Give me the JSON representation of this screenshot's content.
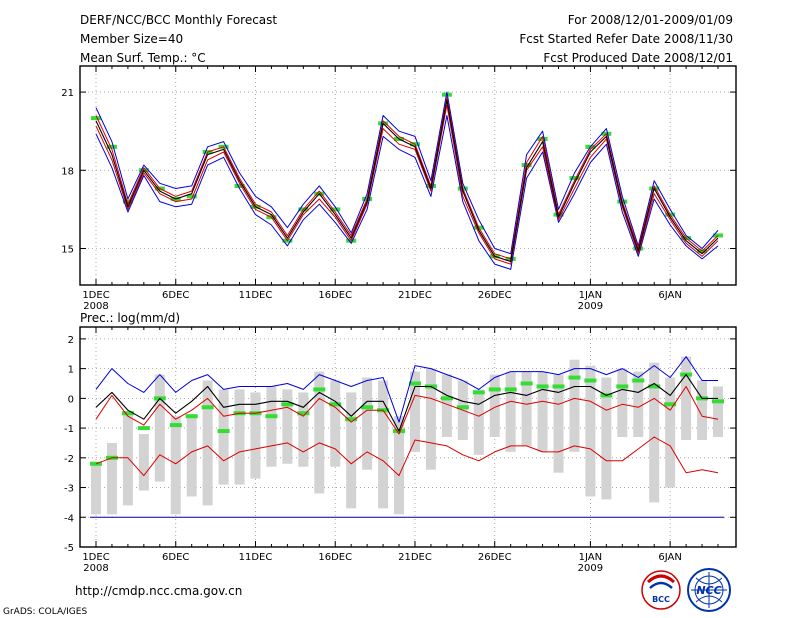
{
  "header": {
    "title": "DERF/NCC/BCC Monthly Forecast",
    "member_size": "Member Size=40",
    "variable": "Mean Surf. Temp.: °C",
    "period": "For 2008/12/01-2009/01/09",
    "started": "Fcst Started Refer Date 2008/11/30",
    "produced": "Fcst Produced Date 2008/12/01"
  },
  "footer": {
    "url": "http://cmdp.ncc.cma.gov.cn",
    "grads": "GrADS: COLA/IGES",
    "logo_bcc": "BCC",
    "logo_ncc": "NCC"
  },
  "x_ticks": [
    {
      "day": 1,
      "label": "1DEC",
      "sub": "2008"
    },
    {
      "day": 6,
      "label": "6DEC",
      "sub": ""
    },
    {
      "day": 11,
      "label": "11DEC",
      "sub": ""
    },
    {
      "day": 16,
      "label": "16DEC",
      "sub": ""
    },
    {
      "day": 21,
      "label": "21DEC",
      "sub": ""
    },
    {
      "day": 26,
      "label": "26DEC",
      "sub": ""
    },
    {
      "day": 32,
      "label": "1JAN",
      "sub": "2009"
    },
    {
      "day": 37,
      "label": "6JAN",
      "sub": ""
    }
  ],
  "colors": {
    "ensemble_max_min": "#0000dd",
    "ensemble_mean": "#000000",
    "spread": "#dd0000",
    "obs_marker": "#33dd33",
    "boxes": "#d3d3d3"
  },
  "chart_data": [
    {
      "type": "line",
      "title": "Mean Surf. Temp.: °C",
      "xlabel": "",
      "ylabel": "",
      "x": [
        1,
        2,
        3,
        4,
        5,
        6,
        7,
        8,
        9,
        10,
        11,
        12,
        13,
        14,
        15,
        16,
        17,
        18,
        19,
        20,
        21,
        22,
        23,
        24,
        25,
        26,
        27,
        28,
        29,
        30,
        31,
        32,
        33,
        34,
        35,
        36,
        37,
        38,
        39,
        40
      ],
      "ylim": [
        13.6,
        22.0
      ],
      "yticks": [
        15,
        18,
        21
      ],
      "series": [
        {
          "name": "ensemble max",
          "values": [
            20.4,
            19.1,
            16.9,
            18.2,
            17.5,
            17.3,
            17.4,
            18.9,
            19.1,
            17.9,
            17.0,
            16.6,
            15.8,
            16.7,
            17.4,
            16.6,
            15.6,
            17.1,
            20.1,
            19.5,
            19.3,
            17.6,
            21.0,
            17.5,
            16.1,
            15.0,
            14.8,
            18.6,
            19.5,
            16.5,
            17.9,
            18.9,
            19.6,
            17.0,
            15.1,
            17.6,
            16.5,
            15.5,
            15.0,
            15.7
          ]
        },
        {
          "name": "spread upper",
          "values": [
            20.1,
            18.8,
            16.7,
            18.1,
            17.3,
            17.0,
            17.2,
            18.7,
            18.9,
            17.7,
            16.7,
            16.4,
            15.5,
            16.5,
            17.2,
            16.4,
            15.5,
            16.9,
            19.9,
            19.3,
            19.0,
            17.4,
            20.8,
            17.3,
            15.8,
            14.8,
            14.6,
            18.3,
            19.3,
            16.3,
            17.6,
            18.8,
            19.4,
            16.8,
            15.0,
            17.4,
            16.3,
            15.4,
            14.9,
            15.5
          ]
        },
        {
          "name": "ensemble mean",
          "values": [
            19.9,
            18.6,
            16.6,
            18.0,
            17.2,
            16.9,
            17.1,
            18.6,
            18.8,
            17.6,
            16.6,
            16.3,
            15.4,
            16.4,
            17.1,
            16.3,
            15.4,
            16.8,
            19.8,
            19.2,
            18.9,
            17.3,
            20.7,
            17.2,
            15.7,
            14.7,
            14.5,
            18.1,
            19.1,
            16.2,
            17.5,
            18.7,
            19.3,
            16.7,
            14.9,
            17.3,
            16.2,
            15.3,
            14.8,
            15.4
          ]
        },
        {
          "name": "spread lower",
          "values": [
            19.7,
            18.4,
            16.5,
            17.9,
            17.1,
            16.8,
            16.9,
            18.4,
            18.7,
            17.5,
            16.5,
            16.2,
            15.3,
            16.3,
            16.9,
            16.2,
            15.3,
            16.7,
            19.6,
            19.0,
            18.8,
            17.2,
            20.5,
            17.0,
            15.6,
            14.6,
            14.4,
            18.0,
            18.9,
            16.1,
            17.3,
            18.5,
            19.2,
            16.6,
            14.8,
            17.1,
            16.1,
            15.2,
            14.7,
            15.3
          ]
        },
        {
          "name": "ensemble min",
          "values": [
            19.4,
            18.1,
            16.4,
            17.8,
            16.8,
            16.6,
            16.7,
            18.2,
            18.5,
            17.3,
            16.3,
            15.9,
            15.1,
            16.1,
            16.7,
            16.0,
            15.2,
            16.5,
            19.3,
            18.8,
            18.5,
            17.0,
            20.1,
            16.8,
            15.3,
            14.4,
            14.2,
            17.7,
            18.7,
            16.0,
            17.1,
            18.3,
            19.0,
            16.4,
            14.7,
            16.9,
            15.9,
            15.1,
            14.6,
            15.1
          ]
        },
        {
          "name": "observed",
          "values": [
            20.0,
            18.9,
            16.8,
            18.0,
            17.3,
            16.9,
            17.0,
            18.7,
            18.9,
            17.4,
            16.6,
            16.2,
            15.3,
            16.5,
            17.1,
            16.5,
            15.3,
            16.9,
            19.8,
            19.2,
            19.0,
            17.4,
            20.9,
            17.3,
            15.8,
            14.7,
            14.6,
            18.2,
            19.2,
            16.3,
            17.7,
            18.9,
            19.4,
            16.8,
            15.0,
            17.3,
            16.3,
            15.4,
            14.9,
            15.5
          ]
        }
      ]
    },
    {
      "type": "line",
      "title": "Prec.: log(mm/d)",
      "xlabel": "",
      "ylabel": "",
      "x": [
        1,
        2,
        3,
        4,
        5,
        6,
        7,
        8,
        9,
        10,
        11,
        12,
        13,
        14,
        15,
        16,
        17,
        18,
        19,
        20,
        21,
        22,
        23,
        24,
        25,
        26,
        27,
        28,
        29,
        30,
        31,
        32,
        33,
        34,
        35,
        36,
        37,
        38,
        39,
        40
      ],
      "ylim": [
        -5,
        2.4
      ],
      "yticks": [
        -5,
        -4,
        -3,
        -2,
        -1,
        0,
        1,
        2
      ],
      "series": [
        {
          "name": "ensemble max",
          "values": [
            0.3,
            1.0,
            0.5,
            0.2,
            0.8,
            0.2,
            0.6,
            0.8,
            0.3,
            0.4,
            0.4,
            0.4,
            0.5,
            0.3,
            0.8,
            0.6,
            0.4,
            0.6,
            0.7,
            -0.8,
            1.1,
            1.0,
            0.8,
            0.6,
            0.3,
            0.7,
            0.9,
            0.9,
            0.9,
            0.8,
            1.0,
            1.0,
            0.8,
            1.0,
            0.7,
            1.1,
            0.7,
            1.4,
            0.6,
            0.6
          ]
        },
        {
          "name": "ensemble mean",
          "values": [
            -0.3,
            0.2,
            -0.4,
            -0.7,
            0.0,
            -0.5,
            -0.1,
            0.4,
            -0.3,
            -0.2,
            -0.2,
            -0.1,
            -0.1,
            -0.3,
            0.2,
            -0.1,
            -0.6,
            -0.1,
            -0.1,
            -1.1,
            0.4,
            0.4,
            0.1,
            -0.1,
            -0.2,
            0.1,
            0.2,
            0.1,
            0.3,
            0.2,
            0.4,
            0.4,
            0.1,
            0.3,
            0.2,
            0.5,
            0.1,
            0.8,
            0.0,
            0.0
          ]
        },
        {
          "name": "spread upper",
          "values": [
            -0.7,
            0.1,
            -0.6,
            -0.9,
            -0.2,
            -0.7,
            -0.4,
            0.0,
            -0.6,
            -0.5,
            -0.5,
            -0.4,
            -0.3,
            -0.6,
            0.0,
            -0.3,
            -0.8,
            -0.4,
            -0.4,
            -1.2,
            0.1,
            0.0,
            -0.2,
            -0.4,
            -0.6,
            -0.3,
            -0.1,
            -0.2,
            -0.1,
            -0.2,
            0.0,
            -0.1,
            -0.4,
            -0.2,
            -0.3,
            0.0,
            -0.4,
            0.4,
            -0.6,
            -0.7
          ]
        },
        {
          "name": "spread lower",
          "values": [
            -2.2,
            -2.0,
            -2.0,
            -2.6,
            -1.9,
            -2.2,
            -1.8,
            -1.6,
            -2.1,
            -1.8,
            -1.7,
            -1.6,
            -1.5,
            -1.8,
            -1.5,
            -1.7,
            -2.2,
            -1.8,
            -2.1,
            -2.6,
            -1.4,
            -1.5,
            -1.6,
            -1.9,
            -2.1,
            -1.8,
            -1.6,
            -1.6,
            -1.8,
            -1.8,
            -1.6,
            -1.7,
            -2.1,
            -2.1,
            -1.7,
            -1.3,
            -1.6,
            -2.5,
            -2.4,
            -2.5
          ]
        },
        {
          "name": "observed",
          "values": [
            -2.2,
            -2.0,
            -0.5,
            -1.0,
            0.0,
            -0.9,
            -0.6,
            -0.3,
            -1.1,
            -0.5,
            -0.5,
            -0.6,
            -0.2,
            -0.5,
            0.3,
            -0.2,
            -0.7,
            -0.3,
            -0.4,
            -1.1,
            0.5,
            0.4,
            0.0,
            -0.3,
            0.2,
            0.3,
            0.3,
            0.5,
            0.4,
            0.4,
            0.7,
            0.6,
            0.1,
            0.4,
            0.6,
            0.4,
            -0.2,
            0.8,
            0.0,
            -0.1
          ]
        }
      ],
      "box_top": [
        -2.2,
        -1.5,
        -0.5,
        -1.2,
        0.8,
        -0.6,
        -0.6,
        0.6,
        0.3,
        0.3,
        0.2,
        0.4,
        0.3,
        0.2,
        0.9,
        0.6,
        0.2,
        0.7,
        0.6,
        -0.6,
        0.9,
        1.0,
        0.8,
        0.6,
        0.3,
        0.8,
        0.9,
        0.9,
        0.9,
        0.8,
        1.3,
        1.1,
        0.7,
        1.0,
        0.9,
        1.2,
        0.7,
        1.4,
        0.6,
        0.4
      ],
      "box_bottom": [
        -3.9,
        -3.9,
        -3.6,
        -3.1,
        -2.8,
        -3.9,
        -3.3,
        -3.6,
        -2.9,
        -2.9,
        -2.7,
        -2.3,
        -2.2,
        -2.3,
        -3.2,
        -2.3,
        -3.7,
        -2.4,
        -3.7,
        -3.9,
        -1.8,
        -2.4,
        -1.3,
        -1.4,
        -1.9,
        -1.3,
        -1.8,
        -1.6,
        -1.8,
        -2.5,
        -1.8,
        -3.3,
        -3.4,
        -1.3,
        -1.3,
        -3.5,
        -3.0,
        -1.4,
        -1.4,
        -1.3
      ],
      "floor": -4
    }
  ]
}
